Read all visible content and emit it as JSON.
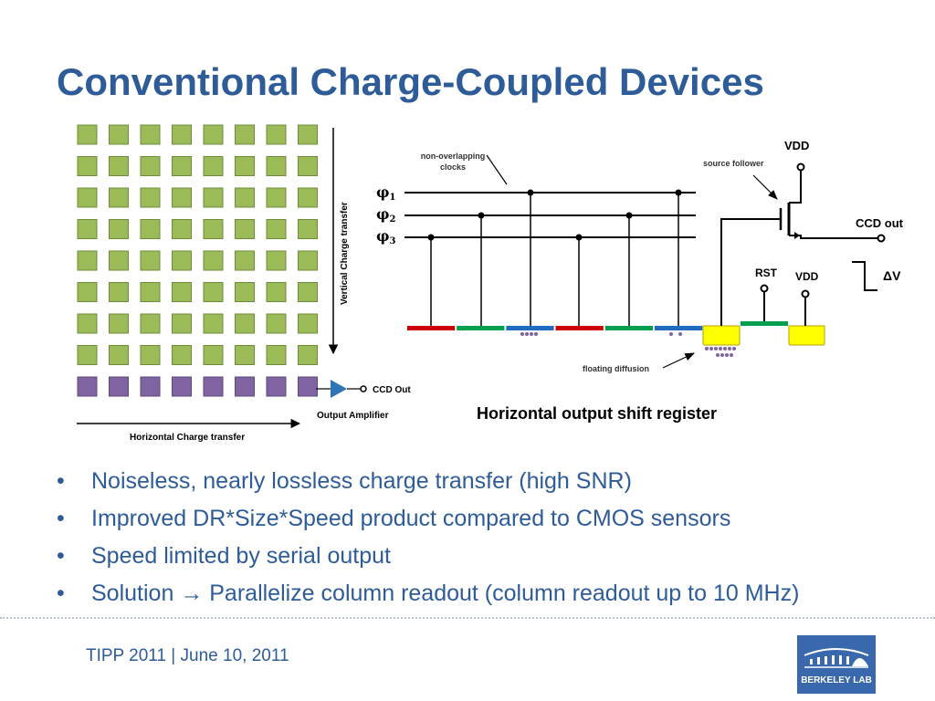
{
  "slide": {
    "title": "Conventional Charge-Coupled Devices",
    "footer": "TIPP 2011 | June 10, 2011"
  },
  "logo": {
    "text": "BERKELEY LAB",
    "color": "#3a68ad"
  },
  "colors": {
    "title": "#2e5c98",
    "pixel": "#9bbb59",
    "register": "#8064a2",
    "amplifier": "#2e75b6"
  },
  "ccd_array": {
    "rows_imaging": 8,
    "columns": 8,
    "rows_register": 1,
    "labels": {
      "vertical": "Vertical Charge transfer",
      "horizontal": "Horizontal Charge transfer",
      "amplifier": "Output Amplifier",
      "out": "CCD Out"
    }
  },
  "circuit": {
    "clocks_label_line1": "non-overlapping",
    "clocks_label_line2": "clocks",
    "phases": [
      {
        "symbol": "φ",
        "sub": "1"
      },
      {
        "symbol": "φ",
        "sub": "2"
      },
      {
        "symbol": "φ",
        "sub": "3"
      }
    ],
    "source_follower": "source follower",
    "vdd_top": "VDD",
    "ccd_out": "CCD out",
    "rst": "RST",
    "vdd_bottom": "VDD",
    "delta_v": "ΔV",
    "floating_diffusion": "floating diffusion",
    "caption": "Horizontal output shift register",
    "gate_colors": [
      "#cc0000",
      "#00a050",
      "#1f6bbf",
      "#cc0000",
      "#00a050",
      "#1f6bbf"
    ],
    "diffusion_color": "#ffff00"
  },
  "bullets": [
    {
      "marker": "•",
      "text": "Noiseless, nearly lossless charge transfer (high SNR)"
    },
    {
      "marker": "•",
      "text": "Improved DR*Size*Speed product compared to CMOS sensors"
    },
    {
      "marker": "•",
      "text": "Speed limited by serial output"
    },
    {
      "marker": "•",
      "prefix": "Solution",
      "arrow": "→",
      "text": " Parallelize column readout (column readout up to 10 MHz)"
    }
  ]
}
